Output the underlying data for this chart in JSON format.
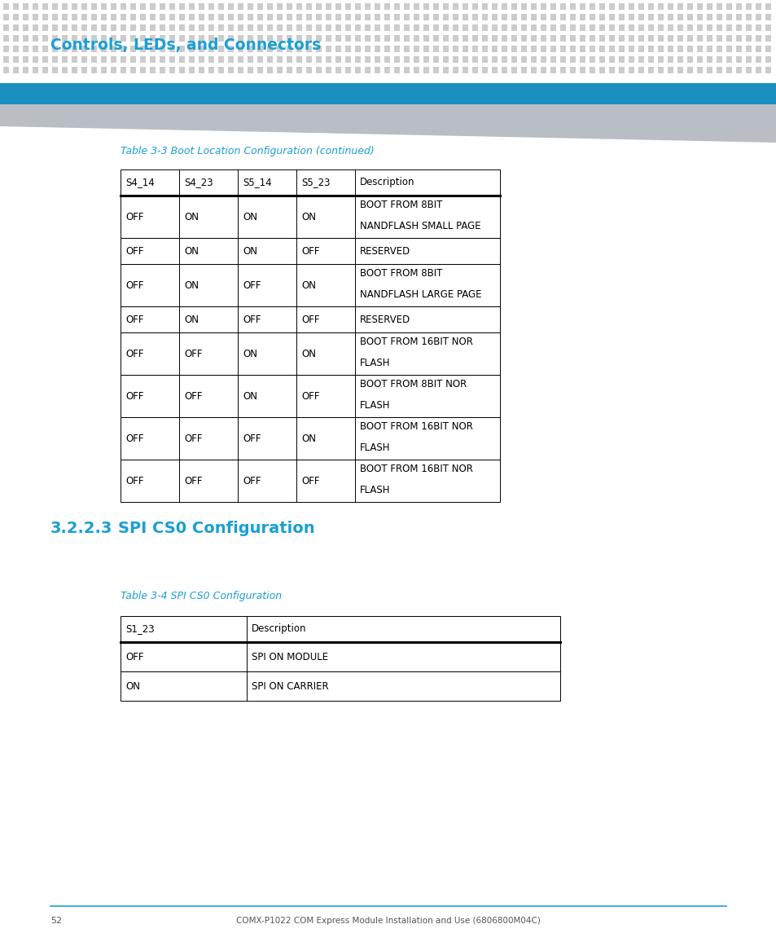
{
  "page_bg": "#ffffff",
  "dot_color": "#cccccc",
  "header_title": "Controls, LEDs, and Connectors",
  "header_title_color": "#1a9fd4",
  "header_title_bold": true,
  "blue_bar_color": "#1a8fc1",
  "gray_stripe_color": "#b8bec4",
  "table1_title": "Table 3-3 Boot Location Configuration (continued)",
  "table1_title_color": "#1a9fd4",
  "table1_headers": [
    "S4_14",
    "S4_23",
    "S5_14",
    "S5_23",
    "Description"
  ],
  "table1_rows": [
    [
      "OFF",
      "ON",
      "ON",
      "ON",
      "BOOT FROM 8BIT\nNANDFLASH SMALL PAGE"
    ],
    [
      "OFF",
      "ON",
      "ON",
      "OFF",
      "RESERVED"
    ],
    [
      "OFF",
      "ON",
      "OFF",
      "ON",
      "BOOT FROM 8BIT\nNANDFLASH LARGE PAGE"
    ],
    [
      "OFF",
      "ON",
      "OFF",
      "OFF",
      "RESERVED"
    ],
    [
      "OFF",
      "OFF",
      "ON",
      "ON",
      "BOOT FROM 16BIT NOR\nFLASH"
    ],
    [
      "OFF",
      "OFF",
      "ON",
      "OFF",
      "BOOT FROM 8BIT NOR\nFLASH"
    ],
    [
      "OFF",
      "OFF",
      "OFF",
      "ON",
      "BOOT FROM 16BIT NOR\nFLASH"
    ],
    [
      "OFF",
      "OFF",
      "OFF",
      "OFF",
      "BOOT FROM 16BIT NOR\nFLASH"
    ]
  ],
  "section_num_color": "#1a9fd4",
  "section_heading": "3.2.2.3",
  "section_title": "SPI CS0 Configuration",
  "table2_title": "Table 3-4 SPI CS0 Configuration",
  "table2_title_color": "#1a9fd4",
  "table2_headers": [
    "S1_23",
    "Description"
  ],
  "table2_rows": [
    [
      "OFF",
      "SPI ON MODULE"
    ],
    [
      "ON",
      "SPI ON CARRIER"
    ]
  ],
  "footer_line_color": "#1a9fd4",
  "footer_page": "52",
  "footer_text": "COMX-P1022 COM Express Module Installation and Use (6806800M04C)",
  "footer_color": "#555555"
}
